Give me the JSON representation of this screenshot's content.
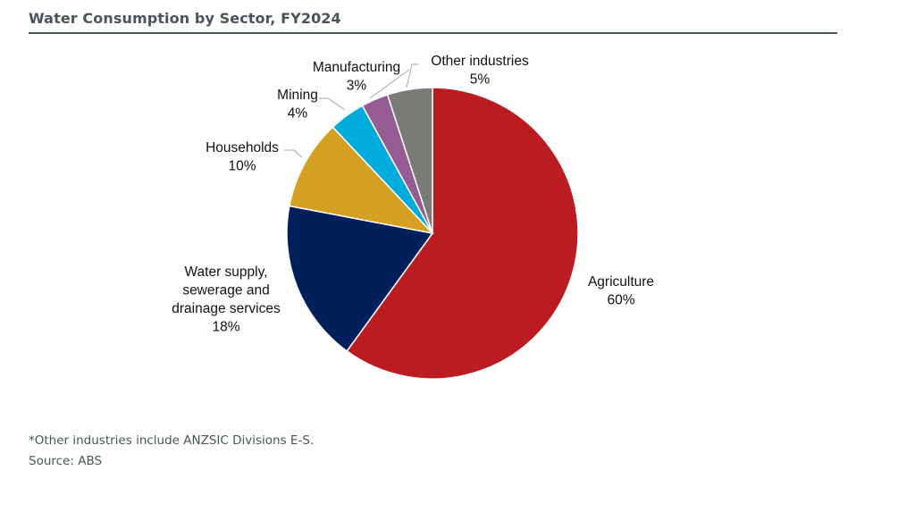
{
  "chart_data": {
    "type": "pie",
    "title": "Water Consumption by Sector, FY2024",
    "start_angle": "12 o'clock",
    "direction": "clockwise",
    "slices": [
      {
        "label": [
          "Agriculture"
        ],
        "pct": "60%",
        "value": 60,
        "color": "#bb1c22"
      },
      {
        "label": [
          "Water supply,",
          "sewerage and",
          "drainage services"
        ],
        "pct": "18%",
        "value": 18,
        "color": "#00205c"
      },
      {
        "label": [
          "Households"
        ],
        "pct": "10%",
        "value": 10,
        "color": "#d3a021"
      },
      {
        "label": [
          "Mining"
        ],
        "pct": "4%",
        "value": 4,
        "color": "#00acdb"
      },
      {
        "label": [
          "Manufacturing"
        ],
        "pct": "3%",
        "value": 3,
        "color": "#965a94"
      },
      {
        "label": [
          "Other industries"
        ],
        "pct": "5%",
        "value": 5,
        "color": "#7a7b76"
      }
    ]
  },
  "footnote": "*Other industries include ANZSIC Divisions E-S.",
  "source": "Source: ABS"
}
